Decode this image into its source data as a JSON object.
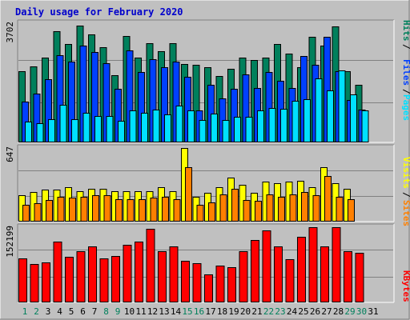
{
  "chart_data": {
    "type": "bar",
    "title": "Daily usage for February 2020",
    "days": [
      "1",
      "2",
      "3",
      "4",
      "5",
      "6",
      "7",
      "8",
      "9",
      "10",
      "11",
      "12",
      "13",
      "14",
      "15",
      "16",
      "17",
      "18",
      "19",
      "20",
      "21",
      "22",
      "23",
      "24",
      "25",
      "26",
      "27",
      "28",
      "29",
      "30",
      "31"
    ],
    "weekend_days": [
      "1",
      "2",
      "8",
      "9",
      "15",
      "16",
      "22",
      "23",
      "29",
      "30"
    ],
    "colors": {
      "hits": "#00805c",
      "files": "#0040ff",
      "pages": "#00e0ff",
      "visits": "#ffff00",
      "sites": "#ff8000",
      "kbytes": "#ff0000",
      "weekday_label": "#000000",
      "weekend_label": "#00805c",
      "title": "#0000cc"
    },
    "panels": [
      {
        "name": "hits-files-pages",
        "max_label": "3702",
        "max": 3702,
        "legend": [
          {
            "label": "Hits",
            "color": "#00805c"
          },
          {
            "label": "Files",
            "color": "#0040ff"
          },
          {
            "label": "Pages",
            "color": "#00e0ff"
          }
        ],
        "series": [
          {
            "name": "Hits",
            "color": "#00805c",
            "values": [
              2200,
              2370,
              2630,
              3460,
              3050,
              3630,
              3350,
              2950,
              2090,
              3300,
              2630,
              3070,
              2840,
              3070,
              2440,
              2400,
              2340,
              2050,
              2290,
              2630,
              2570,
              2630,
              3050,
              2760,
              2340,
              3290,
              3000,
              3600,
              2200,
              1800,
              null
            ]
          },
          {
            "name": "Files",
            "color": "#0040ff",
            "values": [
              1260,
              1520,
              1960,
              2700,
              2500,
              3000,
              2810,
              2470,
              1670,
              2860,
              2180,
              2580,
              2340,
              2500,
              2030,
              1000,
              1800,
              1360,
              1670,
              2120,
              1680,
              2180,
              1910,
              1690,
              2690,
              2420,
              3280,
              2210,
              1310,
              1030,
              null
            ]
          },
          {
            "name": "Pages",
            "color": "#00e0ff",
            "values": [
              640,
              590,
              730,
              1160,
              720,
              910,
              820,
              830,
              680,
              1000,
              910,
              1010,
              870,
              1150,
              1000,
              700,
              900,
              700,
              800,
              800,
              990,
              1070,
              1050,
              1300,
              1350,
              2000,
              1620,
              2230,
              1500,
              1000,
              null
            ]
          }
        ]
      },
      {
        "name": "visits-sites",
        "max_label": "647",
        "max": 647,
        "legend": [
          {
            "label": "Visits",
            "color": "#ffff00"
          },
          {
            "label": "Sites",
            "color": "#ff8000"
          }
        ],
        "series": [
          {
            "name": "Visits",
            "color": "#ffff00",
            "values": [
              230,
              260,
              280,
              280,
              300,
              270,
              290,
              290,
              270,
              270,
              270,
              270,
              300,
              270,
              647,
              220,
              250,
              300,
              390,
              320,
              250,
              350,
              340,
              350,
              360,
              300,
              480,
              340,
              290,
              null,
              null
            ]
          },
          {
            "name": "Sites",
            "color": "#ff8000",
            "values": [
              150,
              160,
              190,
              220,
              210,
              220,
              230,
              230,
              200,
              200,
              200,
              210,
              220,
              200,
              480,
              150,
              170,
              240,
              290,
              190,
              180,
              240,
              220,
              240,
              260,
              230,
              400,
              220,
              200,
              null,
              null
            ]
          }
        ]
      },
      {
        "name": "kbytes",
        "max_label": "152199",
        "max": 152199,
        "legend": [
          {
            "label": "KBytes",
            "color": "#ff0000"
          }
        ],
        "series": [
          {
            "name": "KBytes",
            "color": "#ff0000",
            "values": [
              89000,
              78000,
              81000,
              123000,
              92000,
              103000,
              113000,
              89000,
              94000,
              116000,
              123000,
              149000,
              103000,
              113000,
              85000,
              80000,
              56000,
              75000,
              72000,
              103000,
              126000,
              145000,
              113000,
              88000,
              133000,
              152199,
              113000,
              152199,
              103000,
              101000,
              null
            ]
          }
        ]
      }
    ]
  }
}
